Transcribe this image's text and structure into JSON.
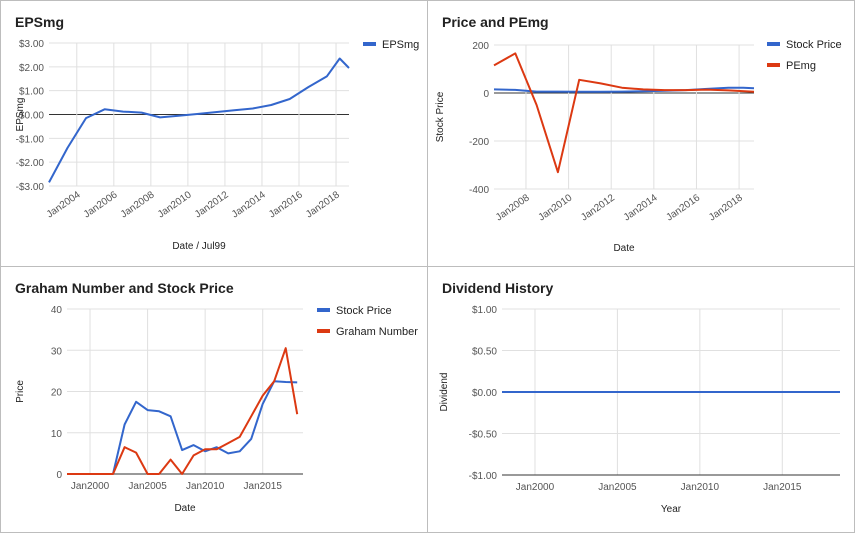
{
  "chart_data": [
    {
      "type": "line",
      "title": "EPSmg",
      "xlabel": "Date / Jul99",
      "ylabel": "EPSmg",
      "x_date_axis": true,
      "xlim": [
        2002.5,
        2018.7
      ],
      "ylim": [
        -3,
        3
      ],
      "yticks": [
        3,
        2,
        1,
        0,
        -1,
        -2,
        -3
      ],
      "ytick_labels": [
        "$3.00",
        "$2.00",
        "$1.00",
        "$0.00",
        "-$1.00",
        "-$2.00",
        "-$3.00"
      ],
      "xticks": [
        2004,
        2006,
        2008,
        2010,
        2012,
        2014,
        2016,
        2018
      ],
      "xtick_labels": [
        "Jan2004",
        "Jan2006",
        "Jan2008",
        "Jan2010",
        "Jan2012",
        "Jan2014",
        "Jan2016",
        "Jan2018"
      ],
      "legend_position": "top-right",
      "zero_line": true,
      "series": [
        {
          "name": "EPSmg",
          "color": "#3366cc",
          "x": [
            2002.5,
            2003.5,
            2004.5,
            2005.5,
            2006.5,
            2007.5,
            2008.5,
            2009.5,
            2010.5,
            2011.5,
            2012.5,
            2013.5,
            2014.5,
            2015.5,
            2016.5,
            2017.5,
            2018.2,
            2018.7
          ],
          "values": [
            -2.85,
            -1.4,
            -0.15,
            0.22,
            0.12,
            0.08,
            -0.12,
            -0.05,
            0.02,
            0.1,
            0.18,
            0.25,
            0.4,
            0.65,
            1.15,
            1.6,
            2.35,
            1.95
          ]
        }
      ]
    },
    {
      "type": "line",
      "title": "Price and PEmg",
      "xlabel": "Date",
      "ylabel": "Stock Price",
      "x_date_axis": true,
      "xlim": [
        2006.5,
        2018.7
      ],
      "ylim": [
        -400,
        200
      ],
      "yticks": [
        200,
        0,
        -200,
        -400
      ],
      "ytick_labels": [
        "200",
        "0",
        "-200",
        "-400"
      ],
      "xticks": [
        2008,
        2010,
        2012,
        2014,
        2016,
        2018
      ],
      "xtick_labels": [
        "Jan2008",
        "Jan2010",
        "Jan2012",
        "Jan2014",
        "Jan2016",
        "Jan2018"
      ],
      "legend_position": "top-right",
      "zero_line": true,
      "series": [
        {
          "name": "Stock Price",
          "color": "#3366cc",
          "x": [
            2006.5,
            2007.5,
            2008.5,
            2009.5,
            2010.5,
            2011.5,
            2012.5,
            2013.5,
            2014.5,
            2015.5,
            2016.5,
            2017.5,
            2018.2,
            2018.7
          ],
          "values": [
            15,
            13,
            6,
            6,
            5,
            5,
            6,
            7,
            9,
            12,
            17,
            22,
            22,
            20
          ]
        },
        {
          "name": "PEmg",
          "color": "#dc3912",
          "x": [
            2006.5,
            2007.5,
            2008.5,
            2009.5,
            2010.5,
            2011.5,
            2012.5,
            2013.5,
            2014.5,
            2015.5,
            2016.5,
            2017.5,
            2018.7
          ],
          "values": [
            115,
            165,
            -50,
            -330,
            55,
            40,
            22,
            15,
            12,
            12,
            14,
            11,
            5
          ]
        }
      ]
    },
    {
      "type": "line",
      "title": "Graham Number and Stock Price",
      "xlabel": "Date",
      "ylabel": "Price",
      "x_date_axis": true,
      "xlim": [
        1998,
        2018.5
      ],
      "ylim": [
        0,
        40
      ],
      "yticks": [
        40,
        30,
        20,
        10,
        0
      ],
      "ytick_labels": [
        "40",
        "30",
        "20",
        "10",
        "0"
      ],
      "xticks": [
        2000,
        2005,
        2010,
        2015
      ],
      "xtick_labels": [
        "Jan2000",
        "Jan2005",
        "Jan2010",
        "Jan2015"
      ],
      "legend_position": "top-right",
      "series": [
        {
          "name": "Stock Price",
          "color": "#3366cc",
          "x": [
            1998,
            1999,
            2000,
            2001,
            2002,
            2003,
            2004,
            2005,
            2006,
            2007,
            2008,
            2009,
            2010,
            2011,
            2012,
            2013,
            2014,
            2015,
            2016,
            2017,
            2018
          ],
          "values": [
            0,
            0,
            0,
            0,
            0,
            12,
            17.5,
            15.5,
            15.2,
            14,
            5.8,
            7,
            5.5,
            6.5,
            5,
            5.5,
            8.5,
            17,
            22.5,
            22.3,
            22.2
          ]
        },
        {
          "name": "Graham Number",
          "color": "#dc3912",
          "x": [
            1998,
            1999,
            2000,
            2001,
            2002,
            2003,
            2004,
            2005,
            2006,
            2007,
            2008,
            2009,
            2010,
            2011,
            2012,
            2013,
            2014,
            2015,
            2016,
            2017,
            2018
          ],
          "values": [
            0,
            0,
            0,
            0,
            0,
            6.5,
            5.2,
            0,
            0,
            3.5,
            0,
            4.5,
            6,
            6,
            7.5,
            9,
            14,
            19,
            22.5,
            30.5,
            14.5
          ]
        }
      ]
    },
    {
      "type": "line",
      "title": "Dividend History",
      "xlabel": "Year",
      "ylabel": "Dividend",
      "x_date_axis": true,
      "xlim": [
        1998,
        2018.5
      ],
      "ylim": [
        -1,
        1
      ],
      "yticks": [
        1,
        0.5,
        0,
        -0.5,
        -1
      ],
      "ytick_labels": [
        "$1.00",
        "$0.50",
        "$0.00",
        "-$0.50",
        "-$1.00"
      ],
      "xticks": [
        2000,
        2005,
        2010,
        2015
      ],
      "xtick_labels": [
        "Jan2000",
        "Jan2005",
        "Jan2010",
        "Jan2015"
      ],
      "series": [
        {
          "color": "#3366cc",
          "x": [
            1998,
            2018.5
          ],
          "values": [
            0,
            0
          ]
        }
      ]
    }
  ]
}
